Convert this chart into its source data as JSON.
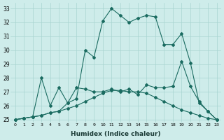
{
  "xlabel": "Humidex (Indice chaleur)",
  "background_color": "#ceecea",
  "grid_color": "#a8d5d1",
  "line_color": "#1a6b60",
  "xlim": [
    -0.5,
    23.5
  ],
  "ylim": [
    24.8,
    33.4
  ],
  "xticks": [
    0,
    1,
    2,
    3,
    4,
    5,
    6,
    7,
    8,
    9,
    10,
    11,
    12,
    13,
    14,
    15,
    16,
    17,
    18,
    19,
    20,
    21,
    22,
    23
  ],
  "yticks": [
    25,
    26,
    27,
    28,
    29,
    30,
    31,
    32,
    33
  ],
  "series1_x": [
    0,
    1,
    2,
    3,
    4,
    5,
    6,
    7,
    8,
    9,
    10,
    11,
    12,
    13,
    14,
    15,
    16,
    17,
    18,
    19,
    20,
    21,
    22,
    23
  ],
  "series1_y": [
    25.0,
    25.1,
    25.2,
    25.3,
    25.5,
    25.6,
    25.8,
    26.0,
    26.3,
    26.6,
    26.9,
    27.1,
    27.1,
    27.0,
    27.0,
    26.9,
    26.6,
    26.3,
    26.0,
    25.7,
    25.5,
    25.3,
    25.1,
    25.0
  ],
  "series2_x": [
    0,
    1,
    2,
    3,
    4,
    5,
    6,
    7,
    8,
    9,
    10,
    11,
    12,
    13,
    14,
    15,
    16,
    17,
    18,
    19,
    20,
    21,
    22,
    23
  ],
  "series2_y": [
    25.0,
    25.1,
    25.2,
    28.0,
    26.0,
    27.3,
    26.2,
    27.3,
    27.2,
    27.0,
    27.0,
    27.2,
    27.0,
    27.2,
    26.8,
    27.5,
    27.3,
    27.3,
    27.4,
    29.2,
    27.4,
    26.3,
    25.6,
    25.0
  ],
  "series3_x": [
    0,
    1,
    2,
    3,
    4,
    5,
    6,
    7,
    8,
    9,
    10,
    11,
    12,
    13,
    14,
    15,
    16,
    17,
    18,
    19,
    20,
    21,
    22,
    23
  ],
  "series3_y": [
    25.0,
    25.1,
    25.2,
    25.3,
    25.5,
    25.6,
    26.2,
    26.5,
    30.0,
    29.5,
    32.1,
    33.0,
    32.5,
    32.0,
    32.3,
    32.5,
    32.4,
    30.4,
    30.4,
    31.2,
    29.1,
    26.2,
    25.6,
    25.0
  ]
}
